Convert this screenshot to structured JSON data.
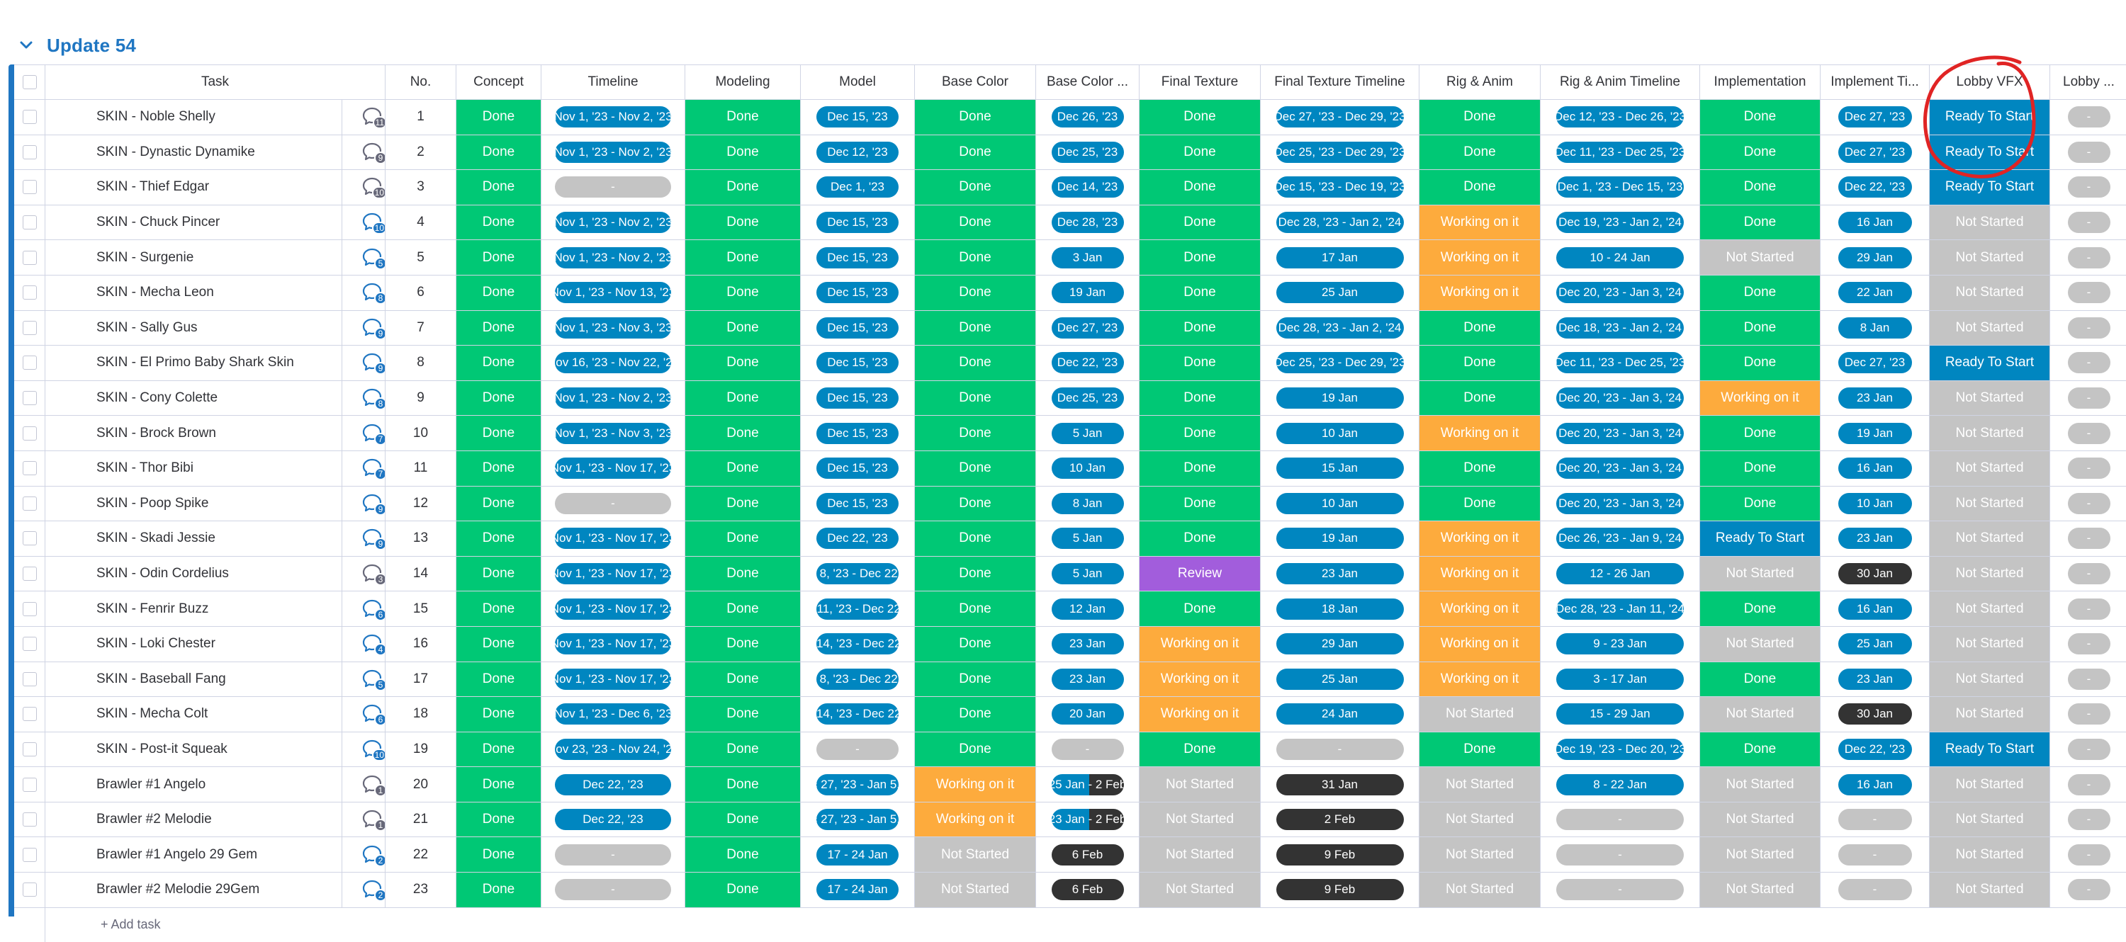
{
  "group": {
    "title": "Update 54",
    "color": "#1f76c2"
  },
  "columns": [
    "Task",
    "No.",
    "Concept",
    "Timeline",
    "Modeling",
    "Model",
    "Base Color",
    "Base Color ...",
    "Final Texture",
    "Final Texture Timeline",
    "Rig & Anim",
    "Rig & Anim Timeline",
    "Implementation",
    "Implement Ti...",
    "Lobby VFX",
    "Lobby ..."
  ],
  "status_colors": {
    "Done": "#00c875",
    "Working on it": "#fdab3d",
    "Not Started": "#c4c4c4",
    "Ready To Start": "#0086c0",
    "Review": "#a25ddc"
  },
  "date_colors": {
    "blue": "#0086c0",
    "dark": "#333333",
    "empty": "#c4c4c4"
  },
  "rows": [
    {
      "task": "SKIN - Noble Shelly",
      "updates": "11",
      "no": "1",
      "concept": "Done",
      "timeline": "Nov 1, '23 - Nov 2, '23",
      "modeling": "Done",
      "model": "Dec 15, '23",
      "base_color": "Done",
      "base_color_tl": "Dec 26, '23",
      "final_texture": "Done",
      "final_texture_tl": "Dec 27, '23 - Dec 29, '23",
      "rig": "Done",
      "rig_tl": "Dec 12, '23 - Dec 26, '23",
      "impl": "Done",
      "impl_tl": "Dec 27, '23",
      "lobby_vfx": "Ready To Start",
      "lobby2": "-"
    },
    {
      "task": "SKIN - Dynastic Dynamike",
      "updates": "9",
      "no": "2",
      "concept": "Done",
      "timeline": "Nov 1, '23 - Nov 2, '23",
      "modeling": "Done",
      "model": "Dec 12, '23",
      "base_color": "Done",
      "base_color_tl": "Dec 25, '23",
      "final_texture": "Done",
      "final_texture_tl": "Dec 25, '23 - Dec 29, '23",
      "rig": "Done",
      "rig_tl": "Dec 11, '23 - Dec 25, '23",
      "impl": "Done",
      "impl_tl": "Dec 27, '23",
      "lobby_vfx": "Ready To Start",
      "lobby2": "-"
    },
    {
      "task": "SKIN - Thief Edgar",
      "updates": "10",
      "no": "3",
      "concept": "Done",
      "timeline": "-",
      "modeling": "Done",
      "model": "Dec 1, '23",
      "base_color": "Done",
      "base_color_tl": "Dec 14, '23",
      "final_texture": "Done",
      "final_texture_tl": "Dec 15, '23 - Dec 19, '23",
      "rig": "Done",
      "rig_tl": "Dec 1, '23 - Dec 15, '23",
      "impl": "Done",
      "impl_tl": "Dec 22, '23",
      "lobby_vfx": "Ready To Start",
      "lobby2": "-"
    },
    {
      "task": "SKIN - Chuck Pincer",
      "updates": "10",
      "no": "4",
      "concept": "Done",
      "timeline": "Nov 1, '23 - Nov 2, '23",
      "modeling": "Done",
      "model": "Dec 15, '23",
      "base_color": "Done",
      "base_color_tl": "Dec 28, '23",
      "final_texture": "Done",
      "final_texture_tl": "Dec 28, '23 - Jan 2, '24",
      "rig": "Working on it",
      "rig_tl": "Dec 19, '23 - Jan 2, '24",
      "impl": "Done",
      "impl_tl": "16 Jan",
      "lobby_vfx": "Not Started",
      "lobby2": "-"
    },
    {
      "task": "SKIN - Surgenie",
      "updates": "5",
      "no": "5",
      "concept": "Done",
      "timeline": "Nov 1, '23 - Nov 2, '23",
      "modeling": "Done",
      "model": "Dec 15, '23",
      "base_color": "Done",
      "base_color_tl": "3 Jan",
      "final_texture": "Done",
      "final_texture_tl": "17 Jan",
      "rig": "Working on it",
      "rig_tl": "10 - 24 Jan",
      "impl": "Not Started",
      "impl_tl": "29 Jan",
      "lobby_vfx": "Not Started",
      "lobby2": "-"
    },
    {
      "task": "SKIN - Mecha Leon",
      "updates": "8",
      "no": "6",
      "concept": "Done",
      "timeline": "Nov 1, '23 - Nov 13, '23",
      "modeling": "Done",
      "model": "Dec 15, '23",
      "base_color": "Done",
      "base_color_tl": "19 Jan",
      "final_texture": "Done",
      "final_texture_tl": "25 Jan",
      "rig": "Working on it",
      "rig_tl": "Dec 20, '23 - Jan 3, '24",
      "impl": "Done",
      "impl_tl": "22 Jan",
      "lobby_vfx": "Not Started",
      "lobby2": "-"
    },
    {
      "task": "SKIN - Sally Gus",
      "updates": "9",
      "no": "7",
      "concept": "Done",
      "timeline": "Nov 1, '23 - Nov 3, '23",
      "modeling": "Done",
      "model": "Dec 15, '23",
      "base_color": "Done",
      "base_color_tl": "Dec 27, '23",
      "final_texture": "Done",
      "final_texture_tl": "Dec 28, '23 - Jan 2, '24",
      "rig": "Done",
      "rig_tl": "Dec 18, '23 - Jan 2, '24",
      "impl": "Done",
      "impl_tl": "8 Jan",
      "lobby_vfx": "Not Started",
      "lobby2": "-"
    },
    {
      "task": "SKIN - El Primo Baby Shark Skin",
      "updates": "9",
      "no": "8",
      "concept": "Done",
      "timeline": "Nov 16, '23 - Nov 22, '23",
      "modeling": "Done",
      "model": "Dec 15, '23",
      "base_color": "Done",
      "base_color_tl": "Dec 22, '23",
      "final_texture": "Done",
      "final_texture_tl": "Dec 25, '23 - Dec 29, '23",
      "rig": "Done",
      "rig_tl": "Dec 11, '23 - Dec 25, '23",
      "impl": "Done",
      "impl_tl": "Dec 27, '23",
      "lobby_vfx": "Ready To Start",
      "lobby2": "-"
    },
    {
      "task": "SKIN - Cony Colette",
      "updates": "8",
      "no": "9",
      "concept": "Done",
      "timeline": "Nov 1, '23 - Nov 2, '23",
      "modeling": "Done",
      "model": "Dec 15, '23",
      "base_color": "Done",
      "base_color_tl": "Dec 25, '23",
      "final_texture": "Done",
      "final_texture_tl": "19 Jan",
      "rig": "Done",
      "rig_tl": "Dec 20, '23 - Jan 3, '24",
      "impl": "Working on it",
      "impl_tl": "23 Jan",
      "lobby_vfx": "Not Started",
      "lobby2": "-"
    },
    {
      "task": "SKIN - Brock Brown",
      "updates": "7",
      "no": "10",
      "concept": "Done",
      "timeline": "Nov 1, '23 - Nov 3, '23",
      "modeling": "Done",
      "model": "Dec 15, '23",
      "base_color": "Done",
      "base_color_tl": "5 Jan",
      "final_texture": "Done",
      "final_texture_tl": "10 Jan",
      "rig": "Working on it",
      "rig_tl": "Dec 20, '23 - Jan 3, '24",
      "impl": "Done",
      "impl_tl": "19 Jan",
      "lobby_vfx": "Not Started",
      "lobby2": "-"
    },
    {
      "task": "SKIN - Thor Bibi",
      "updates": "7",
      "no": "11",
      "concept": "Done",
      "timeline": "Nov 1, '23 - Nov 17, '23",
      "modeling": "Done",
      "model": "Dec 15, '23",
      "base_color": "Done",
      "base_color_tl": "10 Jan",
      "final_texture": "Done",
      "final_texture_tl": "15 Jan",
      "rig": "Done",
      "rig_tl": "Dec 20, '23 - Jan 3, '24",
      "impl": "Done",
      "impl_tl": "16 Jan",
      "lobby_vfx": "Not Started",
      "lobby2": "-"
    },
    {
      "task": "SKIN - Poop Spike",
      "updates": "9",
      "no": "12",
      "concept": "Done",
      "timeline": "-",
      "modeling": "Done",
      "model": "Dec 15, '23",
      "base_color": "Done",
      "base_color_tl": "8 Jan",
      "final_texture": "Done",
      "final_texture_tl": "10 Jan",
      "rig": "Done",
      "rig_tl": "Dec 20, '23 - Jan 3, '24",
      "impl": "Done",
      "impl_tl": "10 Jan",
      "lobby_vfx": "Not Started",
      "lobby2": "-"
    },
    {
      "task": "SKIN - Skadi Jessie",
      "updates": "9",
      "no": "13",
      "concept": "Done",
      "timeline": "Nov 1, '23 - Nov 17, '23",
      "modeling": "Done",
      "model": "Dec 22, '23",
      "base_color": "Done",
      "base_color_tl": "5 Jan",
      "final_texture": "Done",
      "final_texture_tl": "19 Jan",
      "rig": "Working on it",
      "rig_tl": "Dec 26, '23 - Jan 9, '24",
      "impl": "Ready To Start",
      "impl_tl": "23 Jan",
      "lobby_vfx": "Not Started",
      "lobby2": "-"
    },
    {
      "task": "SKIN - Odin Cordelius",
      "updates": "3",
      "no": "14",
      "concept": "Done",
      "timeline": "Nov 1, '23 - Nov 17, '23",
      "modeling": "Done",
      "model": "Dec 8, '23 - Dec 22, '23",
      "base_color": "Done",
      "base_color_tl": "5 Jan",
      "final_texture": "Review",
      "final_texture_tl": "23 Jan",
      "rig": "Working on it",
      "rig_tl": "12 - 26 Jan",
      "impl": "Not Started",
      "impl_tl": "30 Jan",
      "lobby_vfx": "Not Started",
      "lobby2": "-"
    },
    {
      "task": "SKIN - Fenrir Buzz",
      "updates": "6",
      "no": "15",
      "concept": "Done",
      "timeline": "Nov 1, '23 - Nov 17, '23",
      "modeling": "Done",
      "model": "Dec 11, '23 - Dec 22, '23",
      "base_color": "Done",
      "base_color_tl": "12 Jan",
      "final_texture": "Done",
      "final_texture_tl": "18 Jan",
      "rig": "Working on it",
      "rig_tl": "Dec 28, '23 - Jan 11, '24",
      "impl": "Done",
      "impl_tl": "16 Jan",
      "lobby_vfx": "Not Started",
      "lobby2": "-"
    },
    {
      "task": "SKIN - Loki Chester",
      "updates": "4",
      "no": "16",
      "concept": "Done",
      "timeline": "Nov 1, '23 - Nov 17, '23",
      "modeling": "Done",
      "model": "Dec 14, '23 - Dec 22, '23",
      "base_color": "Done",
      "base_color_tl": "23 Jan",
      "final_texture": "Working on it",
      "final_texture_tl": "29 Jan",
      "rig": "Working on it",
      "rig_tl": "9 - 23 Jan",
      "impl": "Not Started",
      "impl_tl": "25 Jan",
      "lobby_vfx": "Not Started",
      "lobby2": "-"
    },
    {
      "task": "SKIN - Baseball Fang",
      "updates": "5",
      "no": "17",
      "concept": "Done",
      "timeline": "Nov 1, '23 - Nov 17, '23",
      "modeling": "Done",
      "model": "Dec 8, '23 - Dec 22, '23",
      "base_color": "Done",
      "base_color_tl": "23 Jan",
      "final_texture": "Working on it",
      "final_texture_tl": "25 Jan",
      "rig": "Working on it",
      "rig_tl": "3 - 17 Jan",
      "impl": "Done",
      "impl_tl": "23 Jan",
      "lobby_vfx": "Not Started",
      "lobby2": "-"
    },
    {
      "task": "SKIN - Mecha Colt",
      "updates": "6",
      "no": "18",
      "concept": "Done",
      "timeline": "Nov 1, '23 - Dec 6, '23",
      "modeling": "Done",
      "model": "Dec 14, '23 - Dec 22, '23",
      "base_color": "Done",
      "base_color_tl": "20 Jan",
      "final_texture": "Working on it",
      "final_texture_tl": "24 Jan",
      "rig": "Not Started",
      "rig_tl": "15 - 29 Jan",
      "impl": "Not Started",
      "impl_tl": "30 Jan",
      "lobby_vfx": "Not Started",
      "lobby2": "-"
    },
    {
      "task": "SKIN - Post-it Squeak",
      "updates": "10",
      "no": "19",
      "concept": "Done",
      "timeline": "Nov 23, '23 - Nov 24, '23",
      "modeling": "Done",
      "model": "-",
      "base_color": "Done",
      "base_color_tl": "-",
      "final_texture": "Done",
      "final_texture_tl": "-",
      "rig": "Done",
      "rig_tl": "Dec 19, '23 - Dec 20, '23",
      "impl": "Done",
      "impl_tl": "Dec 22, '23",
      "lobby_vfx": "Ready To Start",
      "lobby2": "-"
    },
    {
      "task": "Brawler #1 Angelo",
      "updates": "1",
      "no": "20",
      "concept": "Done",
      "timeline": "Dec 22, '23",
      "modeling": "Done",
      "model": "Dec 27, '23 - Jan 5, '24",
      "base_color": "Working on it",
      "base_color_tl": "25 Jan - 2 Feb",
      "final_texture": "Not Started",
      "final_texture_tl": "31 Jan",
      "rig": "Not Started",
      "rig_tl": "8 - 22 Jan",
      "impl": "Not Started",
      "impl_tl": "16 Jan",
      "lobby_vfx": "Not Started",
      "lobby2": "-"
    },
    {
      "task": "Brawler #2 Melodie",
      "updates": "1",
      "no": "21",
      "concept": "Done",
      "timeline": "Dec 22, '23",
      "modeling": "Done",
      "model": "Dec 27, '23 - Jan 5, '24",
      "base_color": "Working on it",
      "base_color_tl": "23 Jan - 2 Feb",
      "final_texture": "Not Started",
      "final_texture_tl": "2 Feb",
      "rig": "Not Started",
      "rig_tl": "-",
      "impl": "Not Started",
      "impl_tl": "-",
      "lobby_vfx": "Not Started",
      "lobby2": "-"
    },
    {
      "task": "Brawler #1 Angelo 29 Gem",
      "updates": "2",
      "no": "22",
      "concept": "Done",
      "timeline": "-",
      "modeling": "Done",
      "model": "17 - 24 Jan",
      "base_color": "Not Started",
      "base_color_tl": "6 Feb",
      "final_texture": "Not Started",
      "final_texture_tl": "9 Feb",
      "rig": "Not Started",
      "rig_tl": "-",
      "impl": "Not Started",
      "impl_tl": "-",
      "lobby_vfx": "Not Started",
      "lobby2": "-"
    },
    {
      "task": "Brawler #2 Melodie 29Gem",
      "updates": "2",
      "no": "23",
      "concept": "Done",
      "timeline": "-",
      "modeling": "Done",
      "model": "17 - 24 Jan",
      "base_color": "Not Started",
      "base_color_tl": "6 Feb",
      "final_texture": "Not Started",
      "final_texture_tl": "9 Feb",
      "rig": "Not Started",
      "rig_tl": "-",
      "impl": "Not Started",
      "impl_tl": "-",
      "lobby_vfx": "Not Started",
      "lobby2": "-"
    }
  ],
  "add_task_label": "+ Add task",
  "annotation": {
    "shape": "red hand-drawn circle around Lobby VFX header",
    "color": "#e02424"
  }
}
